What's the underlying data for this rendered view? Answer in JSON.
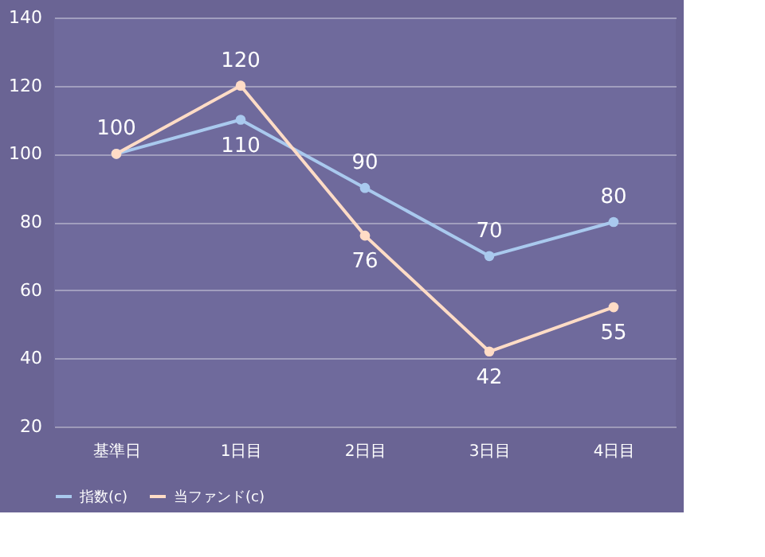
{
  "chart_data": {
    "type": "line",
    "categories": [
      "基準日",
      "1日目",
      "2日目",
      "3日目",
      "4日目"
    ],
    "series": [
      {
        "name": "指数(c)",
        "color": "#a9c9ee",
        "values": [
          100,
          110,
          90,
          70,
          80
        ],
        "value_labels": [
          "100",
          "110",
          "90",
          "70",
          "80"
        ]
      },
      {
        "name": "当ファンド(c)",
        "color": "#ffdcc6",
        "values": [
          100,
          120,
          76,
          42,
          55
        ],
        "value_labels": [
          null,
          "120",
          "76",
          "42",
          "55"
        ]
      }
    ],
    "ylim": [
      20,
      140
    ],
    "yticks": [
      20,
      40,
      60,
      80,
      100,
      120,
      140
    ],
    "grid": "y",
    "legend": "bottom",
    "marker": "circle",
    "line_style": "solid"
  }
}
